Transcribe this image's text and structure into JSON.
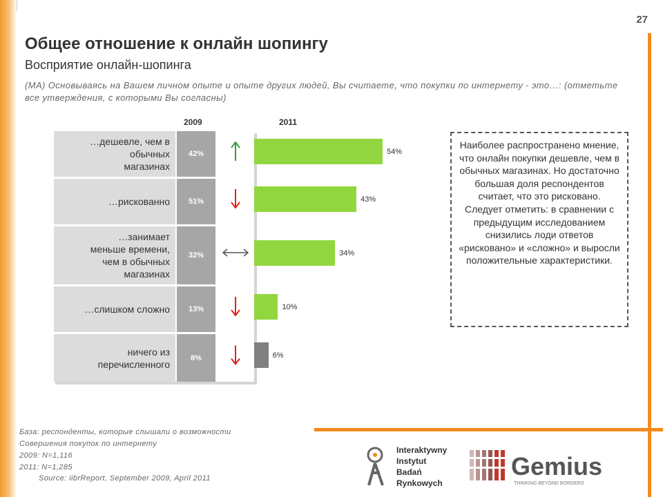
{
  "page_number": "27",
  "title": "Общее отношение к онлайн шопингу",
  "subtitle": "Восприятие онлайн-шопинга",
  "question": "(MA) Основываясь на Вашем личном опыте и опыте других людей, Вы считаете, что покупки по интернету - это…: (отметьте все утверждения, с которыми Вы согласны)",
  "years": {
    "y2009": "2009",
    "y2011": "2011"
  },
  "colors": {
    "bar_green": "#92d63f",
    "bar_gray": "#808080",
    "arrow_up": "#2e9e3a",
    "arrow_down": "#e02020",
    "arrow_neutral": "#555555",
    "accent_orange": "#f28a1c"
  },
  "rows": [
    {
      "label": "…дешевле, чем в\nобычных\nмагазинах",
      "pct2009": "42%",
      "pct2011": "54%",
      "trend": "up"
    },
    {
      "label": "…рискованно",
      "pct2009": "51%",
      "pct2011": "43%",
      "trend": "down"
    },
    {
      "label": "…занимает\nменьше времени,\nчем в обычных\nмагазинах",
      "pct2009": "32%",
      "pct2011": "34%",
      "trend": "neutral"
    },
    {
      "label": "…слишком сложно",
      "pct2009": "13%",
      "pct2011": "10%",
      "trend": "down"
    },
    {
      "label": "ничего из\nперечисленного",
      "pct2009": "8%",
      "pct2011": "6%",
      "trend": "down"
    }
  ],
  "chart_data": {
    "type": "bar",
    "orientation": "horizontal",
    "categories": [
      "…дешевле, чем в обычных магазинах",
      "…рискованно",
      "…занимает меньше времени, чем в обычных магазинах",
      "…слишком сложно",
      "ничего из перечисленного"
    ],
    "series": [
      {
        "name": "2009",
        "values": [
          42,
          51,
          32,
          13,
          8
        ]
      },
      {
        "name": "2011",
        "values": [
          54,
          43,
          34,
          10,
          6
        ]
      }
    ],
    "xlim": [
      0,
      60
    ],
    "unit": "%"
  },
  "note": "Наиболее распространено мнение, что онлайн покупки дешевле, чем в обычных магазинах. Но достаточно большая доля респондентов считает, что это рисковано. Следует отметить: в сравнении с предыдущим исследованием снизились лоди ответов «рисковано» и «сложно» и выросли положительные характеристики.",
  "footer": {
    "base_line1": "База: респонденты, которые слышали о возможности",
    "base_line2": "Совершения покупок по интернету",
    "n2009": "2009: N=1,116",
    "n2011": "2011: N=1,285",
    "source": "Source: iibrReport, September 2009, April 2011"
  },
  "logos": {
    "iibr_line1": "Interaktywny",
    "iibr_line2": "Instytut",
    "iibr_line3": "Badań",
    "iibr_line4": "Rynkowych",
    "gemius_name": "Gemius",
    "gemius_tagline": "THINKING BEYOND BORDERS"
  }
}
